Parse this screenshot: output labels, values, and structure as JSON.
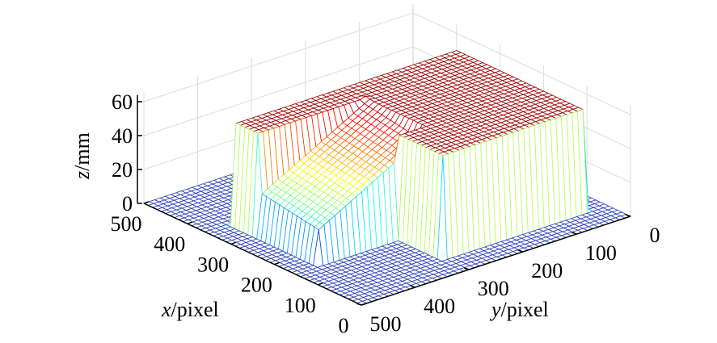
{
  "chart_data": {
    "type": "surface-mesh",
    "title": "",
    "xlabel": {
      "var": "x",
      "unit": "/pixel"
    },
    "ylabel": {
      "var": "y",
      "unit": "/pixel"
    },
    "zlabel": {
      "var": "z",
      "unit": "/mm"
    },
    "xlim": [
      0,
      500
    ],
    "ylim": [
      0,
      500
    ],
    "zlim": [
      0,
      65
    ],
    "xticks": [
      "0",
      "100",
      "200",
      "300",
      "400",
      "500"
    ],
    "yticks": [
      "0",
      "100",
      "200",
      "300",
      "400",
      "500"
    ],
    "zticks": [
      "0",
      "20",
      "40",
      "60"
    ],
    "grid": true,
    "colormap": "jet",
    "base_height": 0,
    "surface_regions": [
      {
        "x": [
          60,
          160
        ],
        "y": [
          40,
          300
        ],
        "z": 60
      },
      {
        "x": [
          160,
          350
        ],
        "y": [
          40,
          250
        ],
        "z": 60
      },
      {
        "x": [
          300,
          350
        ],
        "y": [
          250,
          450
        ],
        "z": 60
      },
      {
        "x": [
          160,
          300
        ],
        "y": [
          250,
          450
        ],
        "ramp": {
          "z_at_y250": 55,
          "z_at_y450": 20
        }
      }
    ]
  }
}
